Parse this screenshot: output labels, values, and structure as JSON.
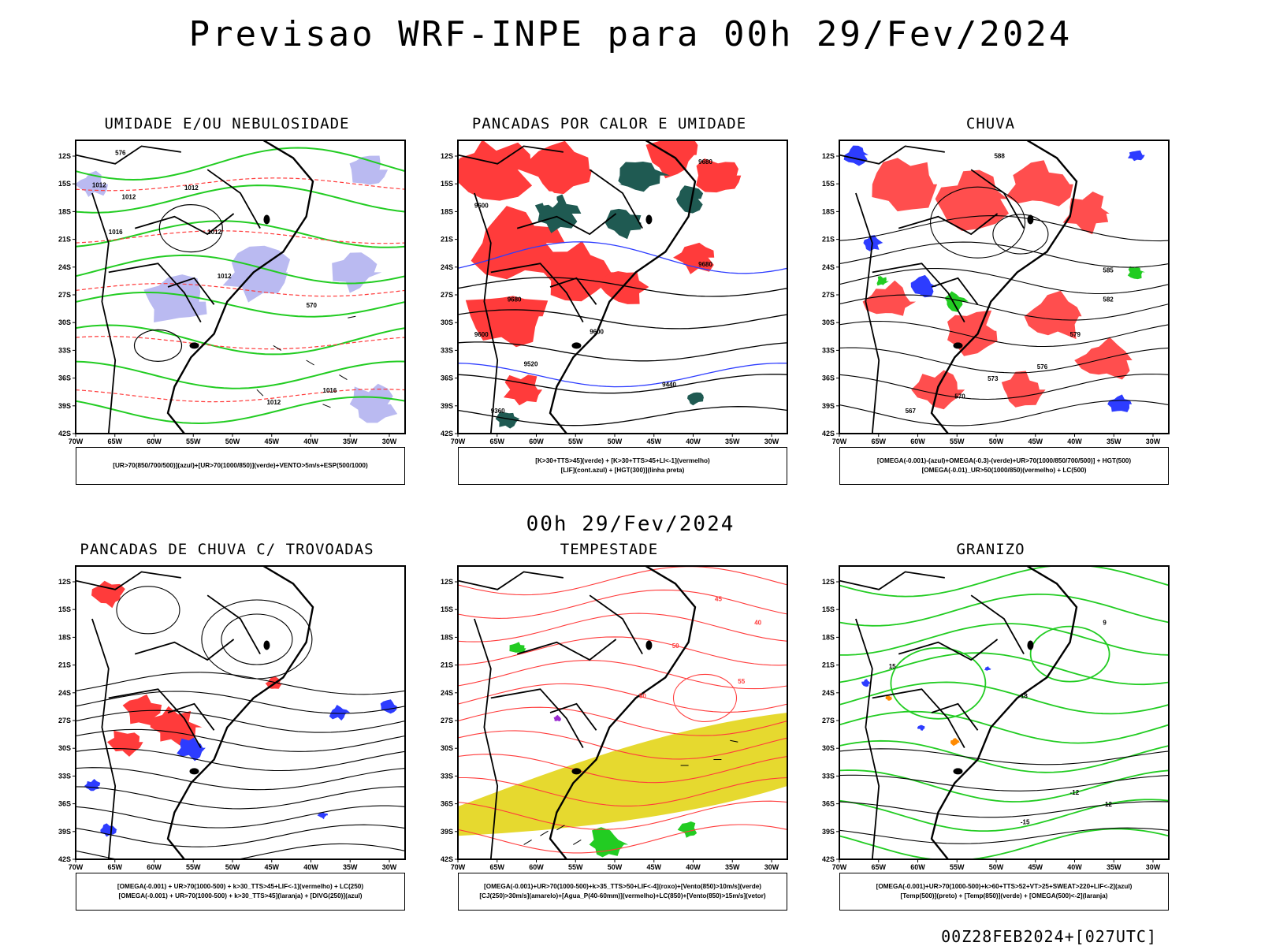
{
  "header": {
    "title": "Previsao WRF-INPE  para 00h 29/Fev/2024",
    "subtitle": "00h 29/Fev/2024",
    "footer": "00Z28FEB2024+[027UTC]"
  },
  "axes": {
    "lat_labels": [
      "12S",
      "15S",
      "18S",
      "21S",
      "24S",
      "27S",
      "30S",
      "33S",
      "36S",
      "39S",
      "42S"
    ],
    "lon_labels": [
      "70W",
      "65W",
      "60W",
      "55W",
      "50W",
      "45W",
      "40W",
      "35W",
      "30W"
    ]
  },
  "colors": {
    "red": "#ff3b3b",
    "green": "#22cc22",
    "blue": "#2d3cff",
    "lavender": "#b3b3f0",
    "darkteal": "#1f5a52",
    "yellow": "#e6d92f",
    "purple": "#9a2bd0",
    "orange": "#ff8a00"
  },
  "panels": [
    {
      "id": "p1",
      "title": "UMIDADE E/OU NEBULOSIDADE",
      "legend": [
        "[UR>70(850/700/500)](azul)+[UR>70(1000/850)](verde)+VENTO>5m/s+ESP(500/1000)"
      ],
      "contour_labels": [
        "1012",
        "1012",
        "1012",
        "1012",
        "1012",
        "1016",
        "1012",
        "576",
        "570",
        "1016"
      ]
    },
    {
      "id": "p2",
      "title": "PANCADAS POR CALOR E UMIDADE",
      "legend": [
        "[K>30+TTS>45](verde) + [K>30+TTS>45+LI<-1](vermelho)",
        "[LIF](cont.azul) + [HGT(300)](linha preta)"
      ],
      "contour_labels": [
        "9680",
        "9600",
        "9680",
        "9600",
        "9600",
        "9520",
        "9440",
        "9360",
        "9680"
      ]
    },
    {
      "id": "p3",
      "title": "CHUVA",
      "legend": [
        "[OMEGA(-0.001)-(azul)+OMEGA(-0.3)-(verde)+UR>70(1000/850/700/500)] + HGT(500)",
        "[OMEGA(-0.01)_UR>50(1000/850)(vermelho) + LC(500)"
      ],
      "contour_labels": [
        "588",
        "585",
        "582",
        "579",
        "576",
        "573",
        "570",
        "567"
      ]
    },
    {
      "id": "p4",
      "title": "PANCADAS DE CHUVA C/ TROVOADAS",
      "legend": [
        "[OMEGA(-0.001) + UR>70(1000-500) + k>30_TTS>45+LIF<-1](vermelho) + LC(250)",
        "[OMEGA(-0.001) + UR>70(1000-500) + k>30_TTS>45](laranja) + [DIVG(250)](azul)"
      ],
      "contour_labels": []
    },
    {
      "id": "p5",
      "title": "TEMPESTADE",
      "legend": [
        "[OMEGA(-0.001)+UR>70(1000-500)+k>35_TTS>50+LIF<-4](roxo)+[Vento(850)>10m/s](verde)",
        "[CJ(250)>30m/s](amarelo)+[Agua_P(40-60mm)](vermelho)+LC(850)+[Vento(850)>15m/s](vetor)"
      ],
      "contour_labels": [
        "50",
        "55",
        "50",
        "45",
        "40"
      ]
    },
    {
      "id": "p6",
      "title": "GRANIZO",
      "legend": [
        "[OMEGA(-0.001)+UR>70(1000-500)+k>60+TTS>52+VT>25+SWEAT>220+LIF<-2](azul)",
        "[Temp(500)](preto) + [Temp(850)](verde) + [OMEGA(500)<-2](laranja)"
      ],
      "contour_labels": [
        "-12",
        "-12",
        "-15",
        "15",
        "18",
        "9"
      ]
    }
  ]
}
